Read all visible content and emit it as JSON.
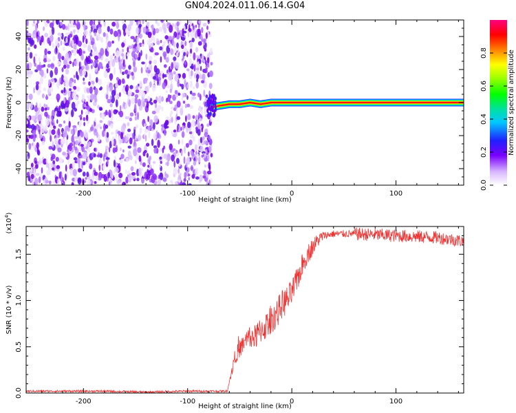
{
  "title": "GN04.2024.011.06.14.G04",
  "chart_data": [
    {
      "type": "heatmap",
      "xlabel": "Height of straight line (km)",
      "ylabel": "Frequency (Hz)",
      "xlim": [
        -255,
        165
      ],
      "ylim": [
        -50,
        50
      ],
      "xticks": [
        -200,
        -100,
        0,
        100
      ],
      "yticks": [
        -40,
        -20,
        0,
        20,
        40
      ],
      "noise_region_x": [
        -255,
        -77
      ],
      "ridge": {
        "x": [
          -77,
          -70,
          -60,
          -50,
          -40,
          -30,
          -20,
          -10,
          0,
          20,
          40,
          60,
          80,
          100,
          120,
          140,
          165
        ],
        "freq": [
          -3,
          -2,
          -1,
          -1,
          0,
          -1,
          0,
          0,
          0,
          0,
          0,
          0,
          0,
          0,
          0,
          0,
          0
        ]
      },
      "colorbar": {
        "label": "Normalized spectral amplitude",
        "ticks": [
          "0.0",
          "0.2",
          "0.4",
          "0.6",
          "0.8"
        ],
        "range": [
          0,
          1
        ]
      }
    },
    {
      "type": "line",
      "xlabel": "Height of straight line (km)",
      "ylabel": "SNR (10 * v/v)",
      "multiplier": "(x10",
      "multiplier_exp": "4",
      "multiplier_close": ")",
      "xlim": [
        -255,
        165
      ],
      "ylim": [
        0,
        1.8
      ],
      "xticks": [
        -200,
        -100,
        0,
        100
      ],
      "yticks": [
        "0.0",
        "0.5",
        "1.0",
        "1.5"
      ],
      "series": [
        {
          "color": "#ee3333",
          "x": [
            -255,
            -220,
            -180,
            -140,
            -100,
            -70,
            -62,
            -60,
            -55,
            -50,
            -45,
            -40,
            -35,
            -30,
            -25,
            -20,
            -15,
            -10,
            -5,
            0,
            5,
            10,
            15,
            20,
            25,
            30,
            40,
            60,
            80,
            100,
            120,
            140,
            165
          ],
          "y": [
            0.02,
            0.02,
            0.02,
            0.01,
            0.02,
            0.02,
            0.02,
            0.12,
            0.38,
            0.48,
            0.55,
            0.62,
            0.6,
            0.68,
            0.72,
            0.8,
            0.85,
            0.95,
            1.0,
            1.08,
            1.22,
            1.38,
            1.5,
            1.58,
            1.65,
            1.7,
            1.72,
            1.72,
            1.71,
            1.7,
            1.69,
            1.68,
            1.64
          ]
        }
      ]
    }
  ]
}
